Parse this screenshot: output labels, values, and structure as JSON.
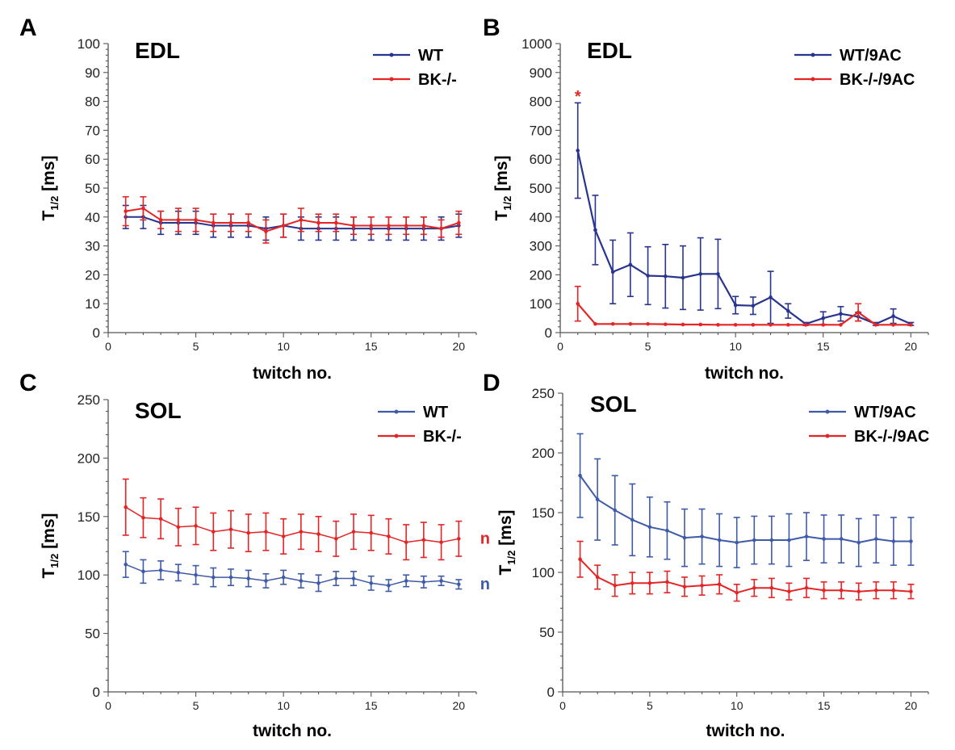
{
  "colors": {
    "wt": "#27358f",
    "wt_sol": "#3f5ba8",
    "bk": "#e52425",
    "axis": "#555555",
    "text": "#000000"
  },
  "chart_data": [
    {
      "id": "A",
      "panel_label": "A",
      "type": "line",
      "title": "EDL",
      "xlabel": "twitch no.",
      "ylabel_main": "T",
      "ylabel_sub": "1/2",
      "ylabel_unit": "[ms]",
      "xlim": [
        0,
        21
      ],
      "ylim": [
        0,
        100
      ],
      "xticks": [
        0,
        5,
        10,
        15,
        20
      ],
      "yticks": [
        0,
        10,
        20,
        30,
        40,
        50,
        60,
        70,
        80,
        90,
        100
      ],
      "legend_position": "top-right",
      "x": [
        1,
        2,
        3,
        4,
        5,
        6,
        7,
        8,
        9,
        10,
        11,
        12,
        13,
        14,
        15,
        16,
        17,
        18,
        19,
        20
      ],
      "series": [
        {
          "name": "WT",
          "color_key": "wt",
          "values": [
            40,
            40,
            38,
            38,
            38,
            37,
            37,
            37,
            36,
            37,
            36,
            36,
            36,
            36,
            36,
            36,
            36,
            36,
            36,
            37
          ],
          "errors": [
            4,
            4,
            4,
            4,
            4,
            4,
            4,
            4,
            4,
            4,
            4,
            4,
            4,
            4,
            4,
            4,
            4,
            4,
            4,
            4
          ]
        },
        {
          "name": "BK-/-",
          "color_key": "bk",
          "values": [
            42,
            43,
            39,
            39,
            39,
            38,
            38,
            38,
            35,
            37,
            39,
            38,
            38,
            37,
            37,
            37,
            37,
            37,
            36,
            38
          ],
          "errors": [
            5,
            4,
            3,
            4,
            4,
            3,
            3,
            3,
            4,
            4,
            4,
            3,
            3,
            3,
            3,
            3,
            3,
            3,
            3,
            4
          ]
        }
      ],
      "annotations": []
    },
    {
      "id": "B",
      "panel_label": "B",
      "type": "line",
      "title": "EDL",
      "xlabel": "twitch no.",
      "ylabel_main": "T",
      "ylabel_sub": "1/2",
      "ylabel_unit": "[ms]",
      "xlim": [
        0,
        21
      ],
      "ylim": [
        0,
        1000
      ],
      "xticks": [
        0,
        5,
        10,
        15,
        20
      ],
      "yticks": [
        0,
        100,
        200,
        300,
        400,
        500,
        600,
        700,
        800,
        900,
        1000
      ],
      "legend_position": "top-right",
      "x": [
        1,
        2,
        3,
        4,
        5,
        6,
        7,
        8,
        9,
        10,
        11,
        12,
        13,
        14,
        15,
        16,
        17,
        18,
        19,
        20
      ],
      "series": [
        {
          "name": "WT/9AC",
          "color_key": "wt",
          "values": [
            630,
            355,
            210,
            235,
            197,
            195,
            190,
            203,
            203,
            95,
            93,
            122,
            75,
            30,
            50,
            65,
            55,
            30,
            57,
            30
          ],
          "errors": [
            165,
            120,
            110,
            110,
            100,
            110,
            110,
            125,
            120,
            30,
            30,
            90,
            25,
            5,
            22,
            25,
            15,
            5,
            25,
            5
          ]
        },
        {
          "name": "BK-/-/9AC",
          "color_key": "bk",
          "values": [
            100,
            30,
            30,
            30,
            30,
            29,
            28,
            28,
            27,
            27,
            27,
            27,
            27,
            27,
            27,
            27,
            70,
            27,
            27,
            27
          ],
          "errors": [
            60,
            0,
            0,
            0,
            0,
            0,
            0,
            0,
            0,
            0,
            0,
            0,
            0,
            0,
            0,
            0,
            30,
            0,
            0,
            0
          ]
        }
      ],
      "annotations": [
        {
          "text": "*",
          "x": 1,
          "y": 815,
          "color_key": "bk"
        }
      ]
    },
    {
      "id": "C",
      "panel_label": "C",
      "type": "line",
      "title": "SOL",
      "xlabel": "twitch no.",
      "ylabel_main": "T",
      "ylabel_sub": "1/2",
      "ylabel_unit": "[ms]",
      "xlim": [
        0,
        21
      ],
      "ylim": [
        0,
        250
      ],
      "xticks": [
        0,
        5,
        10,
        15,
        20
      ],
      "yticks": [
        0,
        50,
        100,
        150,
        200,
        250
      ],
      "legend_position": "top-right",
      "x": [
        1,
        2,
        3,
        4,
        5,
        6,
        7,
        8,
        9,
        10,
        11,
        12,
        13,
        14,
        15,
        16,
        17,
        18,
        19,
        20
      ],
      "series": [
        {
          "name": "WT",
          "color_key": "wt_sol",
          "values": [
            109,
            103,
            104,
            102,
            100,
            98,
            98,
            97,
            95,
            98,
            95,
            93,
            97,
            97,
            93,
            91,
            95,
            94,
            95,
            92
          ],
          "errors": [
            11,
            10,
            8,
            7,
            8,
            8,
            7,
            7,
            6,
            6,
            6,
            7,
            6,
            6,
            6,
            5,
            5,
            5,
            4,
            4
          ]
        },
        {
          "name": "BK-/-",
          "color_key": "bk",
          "values": [
            158,
            149,
            148,
            141,
            142,
            137,
            139,
            136,
            137,
            133,
            137,
            135,
            131,
            137,
            136,
            133,
            128,
            130,
            128,
            131
          ],
          "errors": [
            24,
            17,
            17,
            16,
            16,
            16,
            16,
            16,
            16,
            15,
            15,
            15,
            15,
            15,
            15,
            15,
            15,
            15,
            15,
            15
          ]
        }
      ],
      "annotations": [
        {
          "text": "n",
          "x": 21.5,
          "y": 131,
          "color_key": "bk"
        },
        {
          "text": "n",
          "x": 21.5,
          "y": 92,
          "color_key": "wt_sol"
        }
      ]
    },
    {
      "id": "D",
      "panel_label": "D",
      "type": "line",
      "title": "SOL",
      "xlabel": "twitch no.",
      "ylabel_main": "T",
      "ylabel_sub": "1/2",
      "ylabel_unit": "[ms]",
      "xlim": [
        0,
        21
      ],
      "ylim": [
        0,
        250
      ],
      "xticks": [
        0,
        5,
        10,
        15,
        20
      ],
      "yticks": [
        0,
        50,
        100,
        150,
        200,
        250
      ],
      "legend_position": "top-right",
      "x": [
        1,
        2,
        3,
        4,
        5,
        6,
        7,
        8,
        9,
        10,
        11,
        12,
        13,
        14,
        15,
        16,
        17,
        18,
        19,
        20
      ],
      "series": [
        {
          "name": "WT/9AC",
          "color_key": "wt_sol",
          "values": [
            181,
            161,
            152,
            144,
            138,
            135,
            129,
            130,
            127,
            125,
            127,
            127,
            127,
            130,
            128,
            128,
            125,
            128,
            126,
            126
          ],
          "errors": [
            35,
            34,
            29,
            30,
            25,
            24,
            24,
            23,
            22,
            21,
            20,
            20,
            22,
            20,
            20,
            20,
            20,
            20,
            20,
            20
          ]
        },
        {
          "name": "BK-/-/9AC",
          "color_key": "bk",
          "values": [
            111,
            96,
            89,
            91,
            91,
            92,
            88,
            89,
            90,
            83,
            87,
            87,
            84,
            87,
            85,
            85,
            84,
            85,
            85,
            84
          ],
          "errors": [
            15,
            10,
            9,
            9,
            9,
            9,
            8,
            8,
            8,
            7,
            7,
            8,
            7,
            8,
            7,
            7,
            7,
            7,
            7,
            6
          ]
        }
      ],
      "annotations": []
    }
  ]
}
